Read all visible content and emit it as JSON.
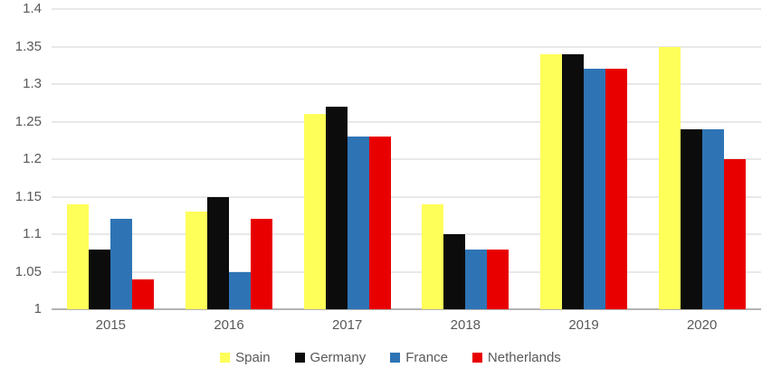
{
  "chart_data": {
    "type": "bar",
    "title": "",
    "xlabel": "",
    "ylabel": "",
    "categories": [
      "2015",
      "2016",
      "2017",
      "2018",
      "2019",
      "2020"
    ],
    "series": [
      {
        "name": "Spain",
        "color": "#FFFF5A",
        "values": [
          1.14,
          1.13,
          1.26,
          1.14,
          1.34,
          1.35
        ]
      },
      {
        "name": "Germany",
        "color": "#0C0C0C",
        "values": [
          1.08,
          1.15,
          1.27,
          1.1,
          1.34,
          1.24
        ]
      },
      {
        "name": "France",
        "color": "#2E74B5",
        "values": [
          1.12,
          1.05,
          1.23,
          1.08,
          1.32,
          1.24
        ]
      },
      {
        "name": "Netherlands",
        "color": "#E80000",
        "values": [
          1.04,
          1.12,
          1.23,
          1.08,
          1.32,
          1.2
        ]
      }
    ],
    "ylim": [
      1,
      1.4
    ],
    "ytick_step": 0.05,
    "ytick_labels": [
      "1",
      "1.05",
      "1.1",
      "1.15",
      "1.2",
      "1.25",
      "1.3",
      "1.35",
      "1.4"
    ],
    "grid": true,
    "legend_position": "bottom"
  },
  "styles": {
    "text_color": "#595959",
    "gridline_color": "#E8E8E8",
    "axis_line_color": "#B3B3B3",
    "background": "#FFFFFF"
  }
}
